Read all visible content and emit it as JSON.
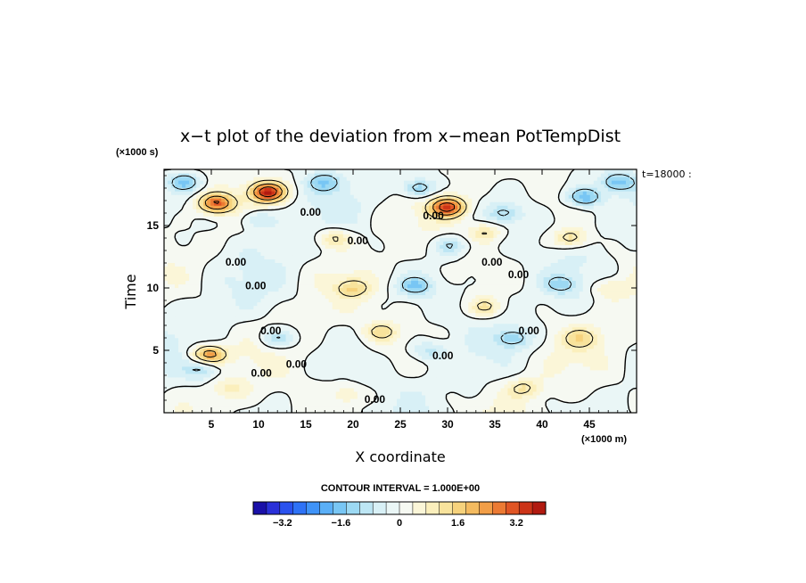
{
  "chart_data": {
    "type": "heatmap",
    "title": "x−t plot of the deviation from x−mean PotTempDist",
    "xlabel": "X coordinate",
    "ylabel": "Time",
    "x_unit": "(×1000 m)",
    "y_unit": "(×1000 s)",
    "time_stamp": "t=18000 :",
    "xlim": [
      0,
      50
    ],
    "ylim": [
      0,
      19.5
    ],
    "x_ticks": [
      5,
      10,
      15,
      20,
      25,
      30,
      35,
      40,
      45
    ],
    "x_tick_labels": [
      "5",
      "10",
      "15",
      "20",
      "25",
      "30",
      "35",
      "40",
      "45"
    ],
    "y_ticks": [
      5,
      10,
      15
    ],
    "y_tick_labels": [
      "5",
      "10",
      "15"
    ],
    "contour_interval_text": "CONTOUR INTERVAL = 1.000E+00",
    "contour_label": "0.00",
    "contour_label_positions": [
      {
        "x": 15.5,
        "y": 15.8
      },
      {
        "x": 28.5,
        "y": 15.5
      },
      {
        "x": 20.5,
        "y": 13.5
      },
      {
        "x": 7.6,
        "y": 11.8
      },
      {
        "x": 34.7,
        "y": 11.8
      },
      {
        "x": 37.5,
        "y": 10.8
      },
      {
        "x": 9.7,
        "y": 9.9
      },
      {
        "x": 11.3,
        "y": 6.3
      },
      {
        "x": 38.6,
        "y": 6.3
      },
      {
        "x": 29.5,
        "y": 4.3
      },
      {
        "x": 10.3,
        "y": 2.9
      },
      {
        "x": 14.0,
        "y": 3.6
      },
      {
        "x": 22.3,
        "y": 0.8
      }
    ],
    "colorbar": {
      "min": -4.0,
      "max": 4.0,
      "tick_values": [
        -3.2,
        -1.6,
        0,
        1.6,
        3.2
      ],
      "tick_labels": [
        "−3.2",
        "−1.6",
        "0",
        "1.6",
        "3.2"
      ],
      "colors": [
        "#1a10a8",
        "#2a30d8",
        "#2a52ee",
        "#2e72f6",
        "#3f93f8",
        "#5aaff7",
        "#78c6f4",
        "#9cd9f3",
        "#bde6f4",
        "#d8f0f6",
        "#eaf6f6",
        "#f6f9f2",
        "#fbf6d8",
        "#fbefbc",
        "#f8e39c",
        "#f6d27c",
        "#f4bb60",
        "#f29e47",
        "#ec7a33",
        "#e05524",
        "#cc3418",
        "#b11a10"
      ]
    },
    "features": [
      {
        "x": 11.0,
        "y": 17.7,
        "value": 3.6
      },
      {
        "x": 30.0,
        "y": 16.5,
        "value": 3.3
      },
      {
        "x": 5.5,
        "y": 16.8,
        "value": 3.0
      },
      {
        "x": 4.7,
        "y": 4.7,
        "value": 2.6
      },
      {
        "x": 2.2,
        "y": 18.5,
        "value": -1.6
      },
      {
        "x": 17.0,
        "y": 18.5,
        "value": -1.3
      },
      {
        "x": 27.0,
        "y": 18.0,
        "value": -1.6
      },
      {
        "x": 44.5,
        "y": 17.3,
        "value": -1.9
      },
      {
        "x": 48.0,
        "y": 18.5,
        "value": -1.6
      },
      {
        "x": 10.0,
        "y": 15.5,
        "value": -1.0
      },
      {
        "x": 36.0,
        "y": 16.0,
        "value": -1.0
      },
      {
        "x": 30.3,
        "y": 13.4,
        "value": -1.1
      },
      {
        "x": 26.5,
        "y": 10.2,
        "value": -1.4
      },
      {
        "x": 42.0,
        "y": 10.3,
        "value": -1.0
      },
      {
        "x": 12.0,
        "y": 6.0,
        "value": -1.2
      },
      {
        "x": 28.0,
        "y": 5.0,
        "value": -1.0
      },
      {
        "x": 37.0,
        "y": 6.0,
        "value": -1.2
      },
      {
        "x": 4.0,
        "y": 3.5,
        "value": -1.0
      },
      {
        "x": 18.0,
        "y": 14.0,
        "value": 1.2
      },
      {
        "x": 34.0,
        "y": 14.5,
        "value": 1.1
      },
      {
        "x": 43.0,
        "y": 14.0,
        "value": 1.4
      },
      {
        "x": 20.0,
        "y": 10.0,
        "value": 1.2
      },
      {
        "x": 34.0,
        "y": 8.5,
        "value": 1.2
      },
      {
        "x": 23.0,
        "y": 6.5,
        "value": 1.2
      },
      {
        "x": 44.0,
        "y": 6.0,
        "value": 1.0
      },
      {
        "x": 7.0,
        "y": 2.0,
        "value": 0.8
      },
      {
        "x": 19.5,
        "y": 1.5,
        "value": 0.7
      },
      {
        "x": 38.0,
        "y": 2.0,
        "value": 1.0
      },
      {
        "x": 47.0,
        "y": 10.0,
        "value": 0.8
      }
    ]
  }
}
